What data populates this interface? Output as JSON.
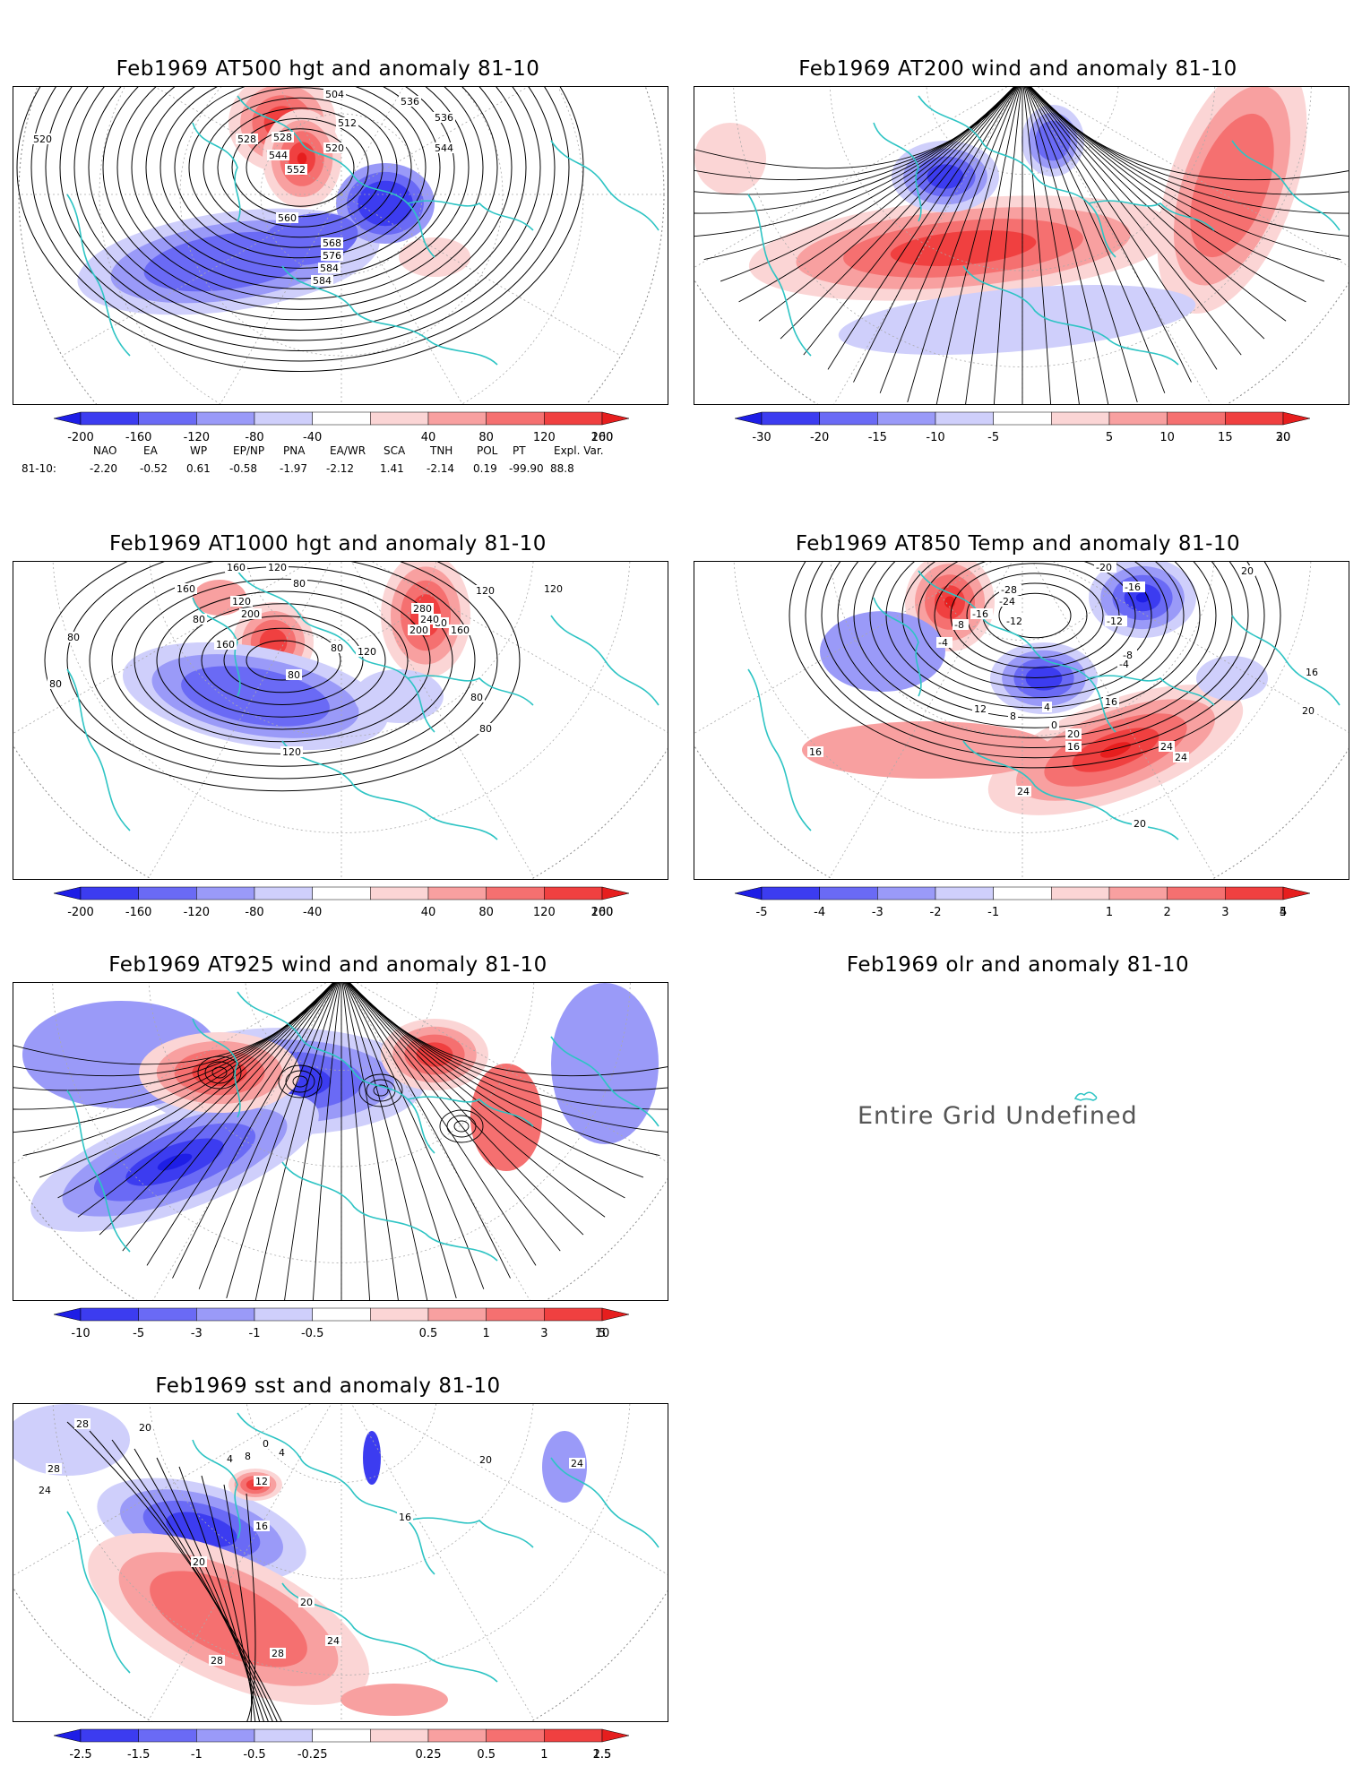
{
  "panels": {
    "p1": {
      "title": "Feb1969 AT500 hgt and anomaly 81-10",
      "contour_labels": [
        "504",
        "512",
        "520",
        "528",
        "528",
        "536",
        "536",
        "544",
        "544",
        "552",
        "560",
        "568",
        "576",
        "584",
        "584",
        "520"
      ]
    },
    "p2": {
      "title": "Feb1969 AT200 wind and anomaly 81-10"
    },
    "p3": {
      "title": "Feb1969 AT1000 hgt and anomaly 81-10",
      "contour_labels": [
        "160",
        "120",
        "80",
        "160",
        "200",
        "120",
        "160",
        "80",
        "120",
        "80",
        "280",
        "240",
        "200",
        "160",
        "120",
        "120",
        "80",
        "80",
        "80",
        "80",
        "120",
        "80",
        "80"
      ]
    },
    "p4": {
      "title": "Feb1969 AT850 Temp and anomaly 81-10",
      "contour_labels": [
        "-20",
        "-16",
        "-28",
        "-24",
        "-16",
        "-12",
        "-8",
        "-4",
        "-12",
        "-8",
        "-4",
        "16",
        "20",
        "20",
        "16",
        "12",
        "8",
        "4",
        "0",
        "16",
        "20",
        "24",
        "24",
        "24",
        "20",
        "16"
      ]
    },
    "p5": {
      "title": "Feb1969 AT925 wind and anomaly 81-10"
    },
    "p6": {
      "title": "Feb1969 olr and anomaly 81-10",
      "message": "Entire Grid Undefined"
    },
    "p7": {
      "title": "Feb1969 sst and anomaly 81-10",
      "contour_labels": [
        "28",
        "24",
        "20",
        "28",
        "4",
        "8",
        "12",
        "0",
        "4",
        "16",
        "16",
        "20",
        "20",
        "24",
        "28",
        "28",
        "20",
        "24"
      ]
    }
  },
  "colorbars": {
    "hgt": [
      "-200",
      "-160",
      "-120",
      "-80",
      "-40",
      "40",
      "80",
      "120",
      "160",
      "200"
    ],
    "wind200": [
      "-30",
      "-20",
      "-15",
      "-10",
      "-5",
      "5",
      "10",
      "15",
      "20",
      "30"
    ],
    "temp": [
      "-5",
      "-4",
      "-3",
      "-2",
      "-1",
      "1",
      "2",
      "3",
      "4",
      "5"
    ],
    "wind925": [
      "-10",
      "-5",
      "-3",
      "-1",
      "-0.5",
      "0.5",
      "1",
      "3",
      "5",
      "10"
    ],
    "sst": [
      "-2.5",
      "-1.5",
      "-1",
      "-0.5",
      "-0.25",
      "0.25",
      "0.5",
      "1",
      "1.5",
      "2.5"
    ]
  },
  "colors": {
    "blues": [
      "#1e1ee6",
      "#3c3cf0",
      "#6a6af5",
      "#9a9af8",
      "#cfcffb"
    ],
    "reds": [
      "#fbd5d5",
      "#f8a0a0",
      "#f57070",
      "#f04040",
      "#e61e1e"
    ],
    "coast": "#2ec4c4"
  },
  "eof": {
    "headers": [
      "NAO",
      "EA",
      "WP",
      "EP/NP",
      "PNA",
      "EA/WR",
      "SCA",
      "TNH",
      "POL",
      "PT",
      "Expl. Var."
    ],
    "row_label": "81-10:",
    "values": [
      "-2.20",
      "-0.52",
      "0.61",
      "-0.58",
      "-1.97",
      "-2.12",
      "1.41",
      "-2.14",
      "0.19",
      "-99.90",
      "88.8"
    ]
  }
}
